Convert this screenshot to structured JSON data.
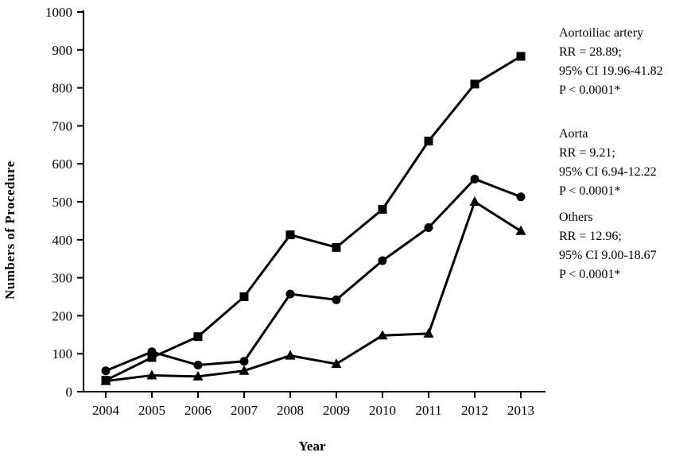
{
  "chart_data": {
    "type": "line",
    "title": "",
    "xlabel": "Year",
    "ylabel": "Numbers of Procedure",
    "ylim": [
      0,
      1000
    ],
    "ytick_step": 100,
    "categories": [
      "2004",
      "2005",
      "2006",
      "2007",
      "2008",
      "2009",
      "2010",
      "2011",
      "2012",
      "2013"
    ],
    "series": [
      {
        "name": "Aortoiliac artery",
        "marker": "square",
        "values": [
          30,
          90,
          145,
          250,
          413,
          380,
          480,
          660,
          810,
          883
        ]
      },
      {
        "name": "Aorta",
        "marker": "circle",
        "values": [
          55,
          105,
          70,
          80,
          257,
          242,
          345,
          432,
          560,
          513
        ]
      },
      {
        "name": "Others",
        "marker": "triangle",
        "values": [
          28,
          43,
          40,
          55,
          95,
          73,
          148,
          153,
          500,
          423
        ]
      }
    ],
    "grid": false,
    "legend_position": "right",
    "colors": {
      "line": "#000000",
      "background": "#ffffff"
    }
  },
  "annotations": [
    {
      "title": "Aortoiliac artery",
      "lines": [
        "RR = 28.89;",
        "95% CI 19.96-41.82",
        "P < 0.0001*"
      ]
    },
    {
      "title": "Aorta",
      "lines": [
        "RR = 9.21;",
        "95% CI 6.94-12.22",
        "P < 0.0001*"
      ]
    },
    {
      "title": "Others",
      "lines": [
        "RR = 12.96;",
        "95% CI 9.00-18.67",
        "P < 0.0001*"
      ]
    }
  ]
}
